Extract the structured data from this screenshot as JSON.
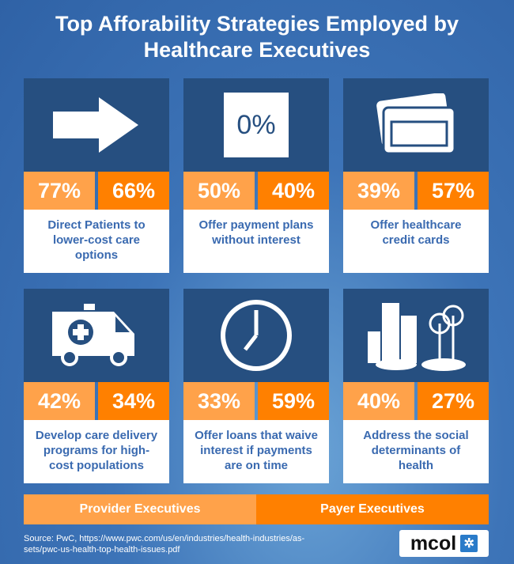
{
  "title": "Top Afforability Strategies Employed by Healthcare Executives",
  "zero_icon_text": "0%",
  "legend": {
    "provider": "Provider Executives",
    "payer": "Payer Executives"
  },
  "source": "Source:  PwC, https://www.pwc.com/us/en/industries/health-industries/as-sets/pwc-us-health-top-health-issues.pdf",
  "logo": "mcol",
  "colors": {
    "provider": "#ffa24a",
    "payer": "#ff8000",
    "tile": "#264f80",
    "text": "#3a6ab0"
  },
  "chart_data": {
    "type": "bar",
    "title": "Top Afforability Strategies Employed by Healthcare Executives",
    "categories": [
      "Direct Patients to lower-cost care options",
      "Offer payment plans without interest",
      "Offer healthcare credit cards",
      "Develop care delivery programs for high-cost populations",
      "Offer loans that waive interest if payments are on time",
      "Address the social determinants of health"
    ],
    "series": [
      {
        "name": "Provider Executives",
        "values": [
          77,
          50,
          39,
          42,
          33,
          40
        ],
        "labels": [
          "77%",
          "50%",
          "39%",
          "42%",
          "33%",
          "40%"
        ]
      },
      {
        "name": "Payer Executives",
        "values": [
          66,
          40,
          57,
          34,
          59,
          27
        ],
        "labels": [
          "66%",
          "40%",
          "57%",
          "34%",
          "59%",
          "27%"
        ]
      }
    ],
    "unit": "%"
  }
}
